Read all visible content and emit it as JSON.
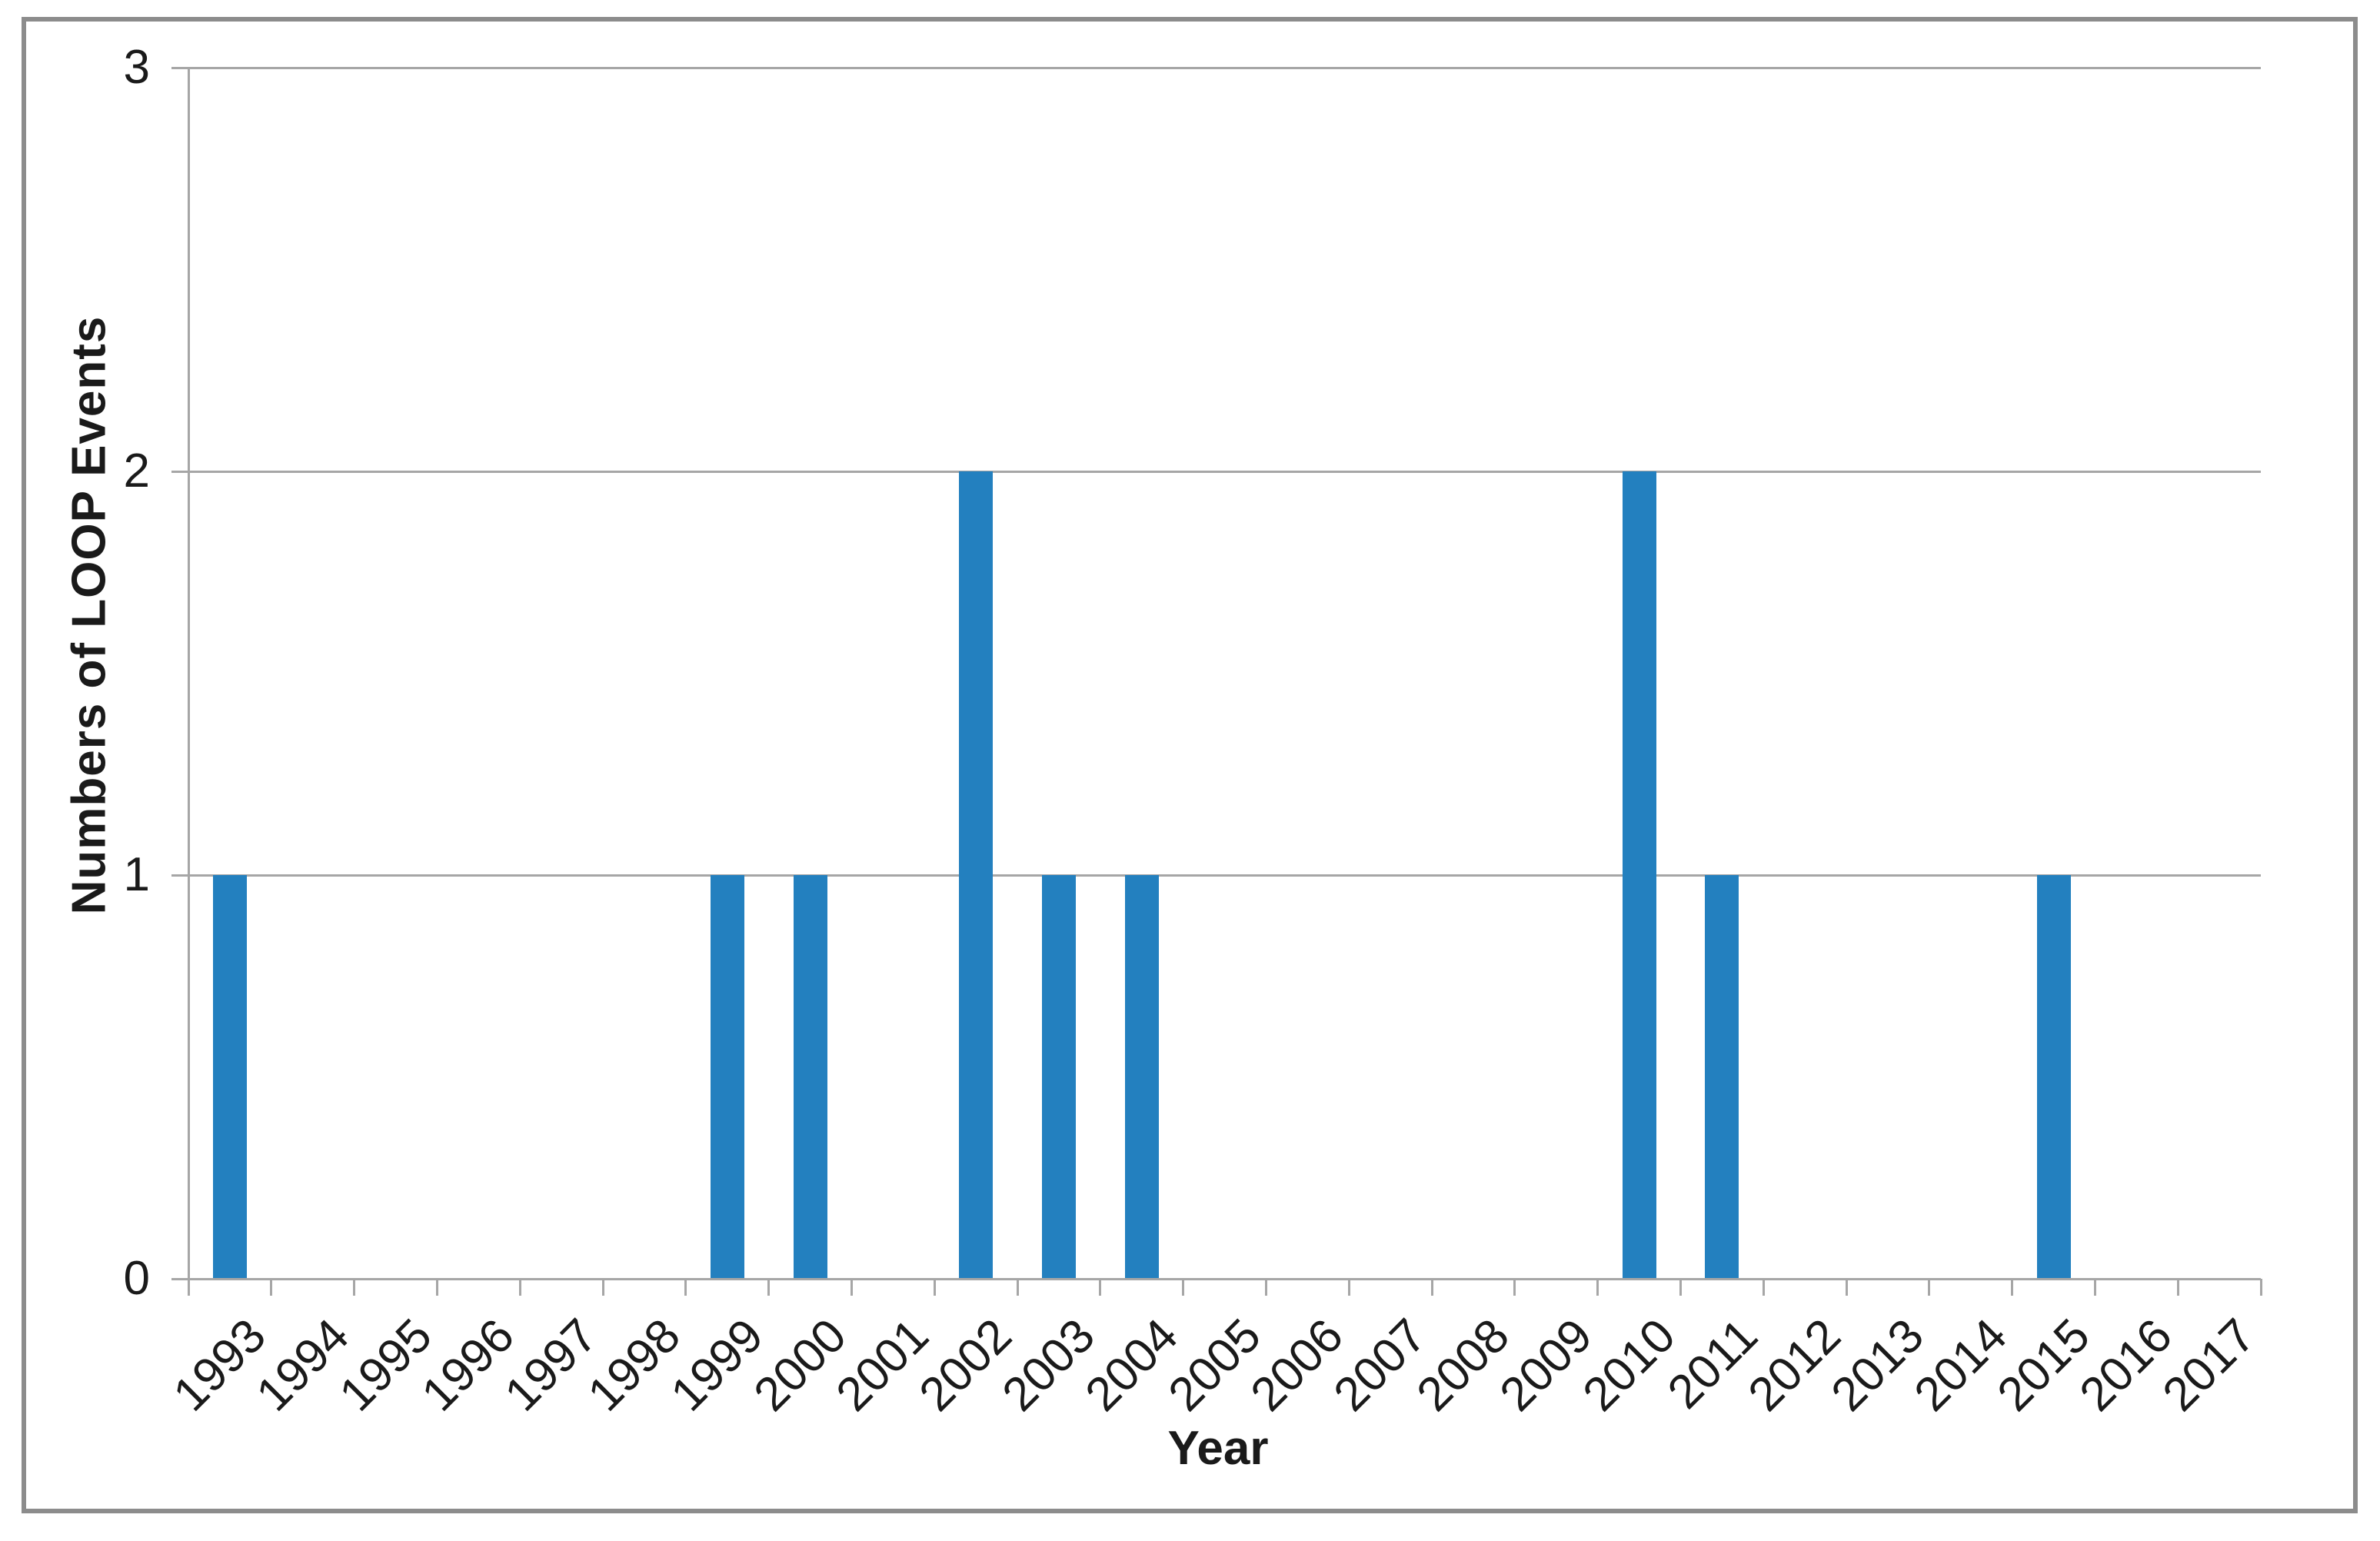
{
  "chart_data": {
    "type": "bar",
    "title": "",
    "xlabel": "Year",
    "ylabel": "Numbers of LOOP Events",
    "categories": [
      "1993",
      "1994",
      "1995",
      "1996",
      "1997",
      "1998",
      "1999",
      "2000",
      "2001",
      "2002",
      "2003",
      "2004",
      "2005",
      "2006",
      "2007",
      "2008",
      "2009",
      "2010",
      "2011",
      "2012",
      "2013",
      "2014",
      "2015",
      "2016",
      "2017"
    ],
    "values": [
      1,
      0,
      0,
      0,
      0,
      0,
      1,
      1,
      0,
      2,
      1,
      1,
      0,
      0,
      0,
      0,
      0,
      2,
      1,
      0,
      0,
      0,
      1,
      0,
      0
    ],
    "ylim": [
      0,
      3
    ],
    "yticks": [
      0,
      1,
      2,
      3
    ],
    "grid": "horizontal-only",
    "legend": "none",
    "x_tick_rotation_deg": 45,
    "colors": {
      "bar": "#2380bf",
      "axis": "#a6a6a6",
      "frame_border": "#8c8c8c",
      "text": "#1a1a1a",
      "background": "#ffffff"
    }
  }
}
